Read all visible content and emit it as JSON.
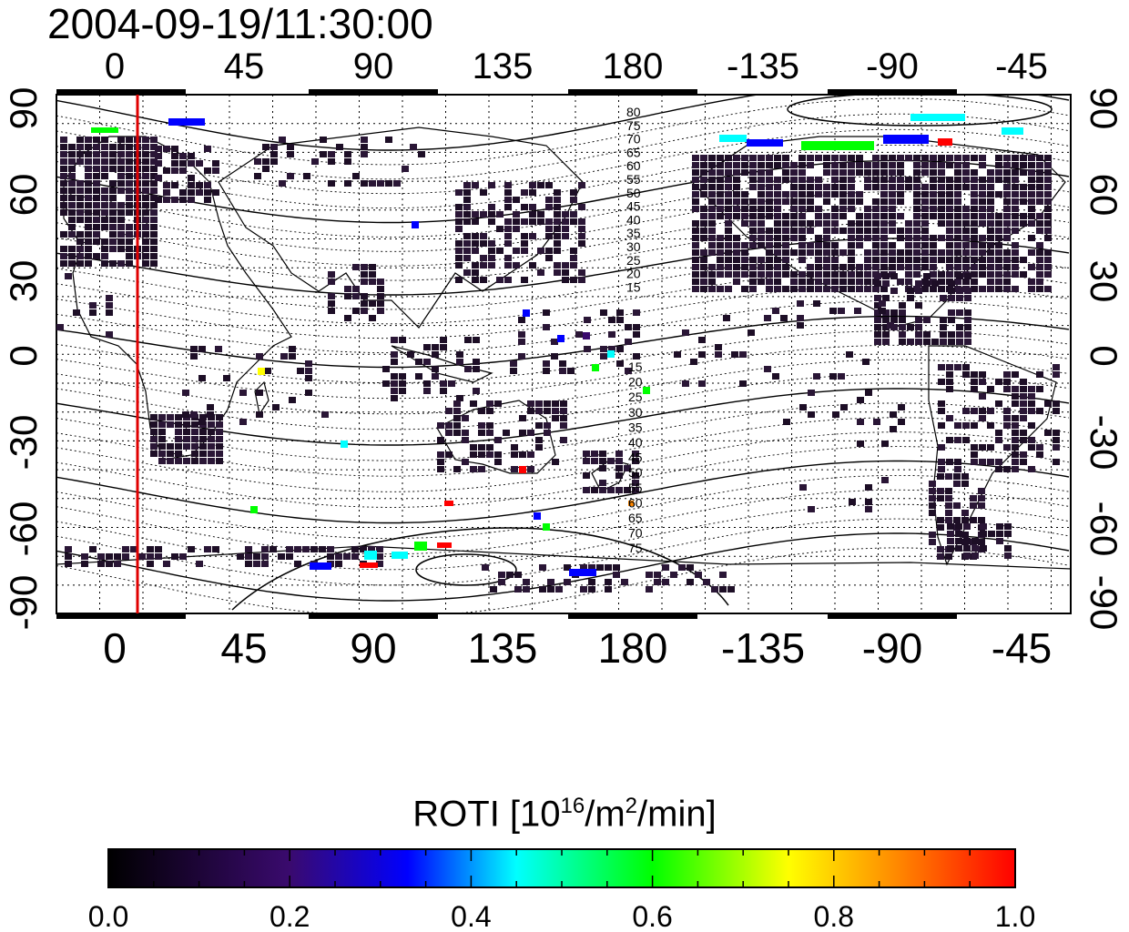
{
  "timestamp": "2004-09-19/11:30:00",
  "map": {
    "lon_ticks": [
      "0",
      "45",
      "90",
      "135",
      "180",
      "-135",
      "-90",
      "-45"
    ],
    "lat_ticks": [
      "90",
      "60",
      "30",
      "0",
      "-30",
      "-60",
      "-90"
    ],
    "north_contour_labels": [
      "80",
      "75",
      "70",
      "65",
      "60",
      "55",
      "50",
      "45",
      "40",
      "35",
      "30",
      "25",
      "20",
      "15"
    ],
    "south_contour_labels": [
      "15",
      "20",
      "25",
      "30",
      "35",
      "40",
      "45",
      "50",
      "55",
      "60",
      "65",
      "70",
      "75"
    ],
    "terminator_line_color": "#e00000"
  },
  "colorbar": {
    "label_main": "ROTI  [10",
    "label_exp1": "16",
    "label_mid": "/m",
    "label_exp2": "2",
    "label_end": "/min]",
    "ticks": [
      "0.0",
      "0.2",
      "0.4",
      "0.6",
      "0.8",
      "1.0"
    ],
    "min": 0.0,
    "max": 1.0,
    "colors": [
      "#000000",
      "#3a0a6e",
      "#0000ff",
      "#00ffff",
      "#00ff00",
      "#ffff00",
      "#ff8800",
      "#ff0000"
    ]
  }
}
